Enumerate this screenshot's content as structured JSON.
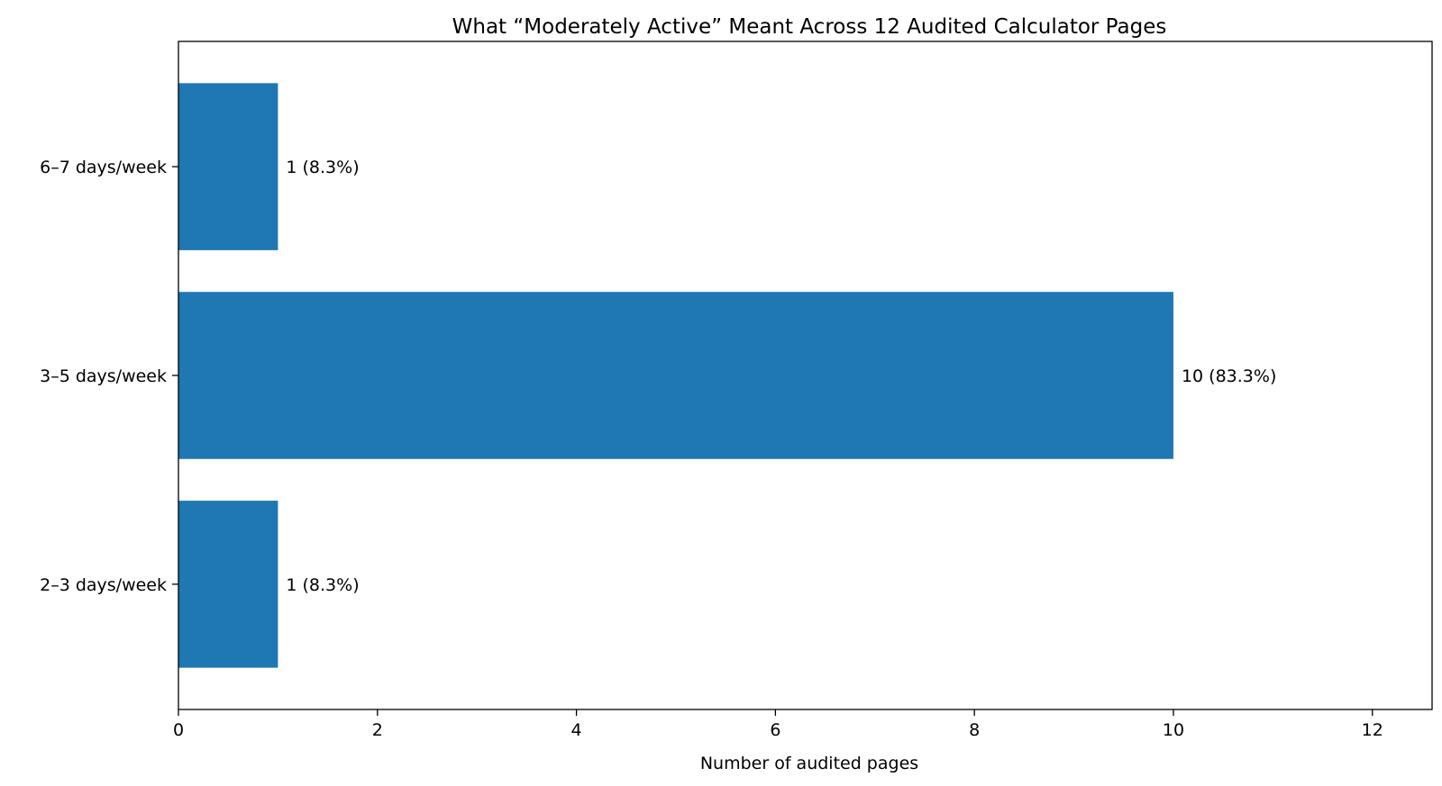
{
  "chart_data": {
    "type": "bar",
    "orientation": "horizontal",
    "title": "What “Moderately Active” Meant Across 12 Audited Calculator Pages",
    "xlabel": "Number of audited pages",
    "ylabel": "",
    "categories": [
      "2–3 days/week",
      "3–5 days/week",
      "6–7 days/week"
    ],
    "values": [
      1,
      10,
      1
    ],
    "data_labels": [
      "1 (8.3%)",
      "10 (83.3%)",
      "1 (8.3%)"
    ],
    "xlim": [
      0,
      12.6
    ],
    "xticks": [
      0,
      2,
      4,
      6,
      8,
      10,
      12
    ],
    "grid": false,
    "legend": "none",
    "bar_color": "#1f77b4"
  }
}
